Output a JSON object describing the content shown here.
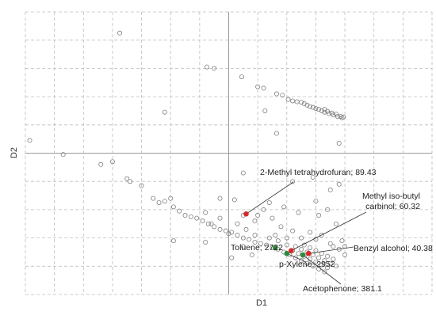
{
  "chart_data": {
    "type": "scatter",
    "xlabel": "D1",
    "ylabel": "D2",
    "xlim": [
      -7,
      7
    ],
    "ylim": [
      -5,
      5
    ],
    "grid": true,
    "background_color": "#808080",
    "highlight_color_red": "#d62828",
    "highlight_color_green": "#2e8b3e",
    "background_points": [
      [
        -3.75,
        4.25
      ],
      [
        -0.75,
        3.05
      ],
      [
        -0.5,
        3.0
      ],
      [
        0.45,
        2.7
      ],
      [
        1.0,
        2.35
      ],
      [
        1.2,
        2.3
      ],
      [
        1.65,
        2.1
      ],
      [
        1.85,
        2.05
      ],
      [
        2.05,
        1.9
      ],
      [
        2.2,
        1.85
      ],
      [
        2.35,
        1.82
      ],
      [
        2.5,
        1.8
      ],
      [
        2.6,
        1.75
      ],
      [
        2.7,
        1.7
      ],
      [
        2.8,
        1.65
      ],
      [
        2.9,
        1.62
      ],
      [
        3.0,
        1.58
      ],
      [
        3.1,
        1.55
      ],
      [
        3.2,
        1.5
      ],
      [
        3.3,
        1.45
      ],
      [
        3.45,
        1.4
      ],
      [
        3.6,
        1.35
      ],
      [
        3.75,
        1.3
      ],
      [
        3.9,
        1.25
      ],
      [
        3.3,
        1.55
      ],
      [
        3.4,
        1.48
      ],
      [
        3.55,
        1.42
      ],
      [
        3.7,
        1.38
      ],
      [
        3.85,
        1.3
      ],
      [
        3.95,
        1.28
      ],
      [
        -2.2,
        1.45
      ],
      [
        1.25,
        1.5
      ],
      [
        1.65,
        0.7
      ],
      [
        3.8,
        0.35
      ],
      [
        -6.85,
        0.45
      ],
      [
        -5.7,
        -0.05
      ],
      [
        -4.4,
        -0.4
      ],
      [
        -4.0,
        -0.3
      ],
      [
        -3.5,
        -0.9
      ],
      [
        -3.4,
        -1.0
      ],
      [
        -3.0,
        -1.15
      ],
      [
        -2.6,
        -1.6
      ],
      [
        -2.4,
        -1.75
      ],
      [
        -2.2,
        -1.7
      ],
      [
        -2.0,
        -1.6
      ],
      [
        -1.9,
        -1.9
      ],
      [
        -1.7,
        -2.05
      ],
      [
        -1.5,
        -2.2
      ],
      [
        -1.3,
        -2.25
      ],
      [
        -1.1,
        -2.3
      ],
      [
        -0.9,
        -2.4
      ],
      [
        -0.7,
        -2.5
      ],
      [
        -0.5,
        -2.6
      ],
      [
        -0.3,
        -2.7
      ],
      [
        -0.1,
        -2.75
      ],
      [
        0.1,
        -2.8
      ],
      [
        0.3,
        -2.9
      ],
      [
        0.5,
        -3.0
      ],
      [
        0.7,
        -3.05
      ],
      [
        0.9,
        -3.15
      ],
      [
        1.1,
        -3.2
      ],
      [
        1.3,
        -3.25
      ],
      [
        1.5,
        -3.35
      ],
      [
        1.7,
        -3.4
      ],
      [
        1.9,
        -3.5
      ],
      [
        2.1,
        -3.6
      ],
      [
        2.3,
        -3.7
      ],
      [
        2.5,
        -3.8
      ],
      [
        2.7,
        -3.9
      ],
      [
        2.9,
        -4.0
      ],
      [
        3.1,
        -4.1
      ],
      [
        3.3,
        -4.2
      ],
      [
        2.2,
        -3.45
      ],
      [
        2.4,
        -3.55
      ],
      [
        2.6,
        -3.65
      ],
      [
        2.8,
        -3.75
      ],
      [
        3.0,
        -3.85
      ],
      [
        3.2,
        -3.95
      ],
      [
        3.4,
        -4.05
      ],
      [
        2.3,
        -3.3
      ],
      [
        2.5,
        -3.4
      ],
      [
        2.7,
        -3.5
      ],
      [
        2.9,
        -3.6
      ],
      [
        3.1,
        -3.7
      ],
      [
        3.3,
        -3.8
      ],
      [
        3.5,
        -3.9
      ],
      [
        3.7,
        -4.0
      ],
      [
        2.0,
        -3.25
      ],
      [
        2.6,
        -3.25
      ],
      [
        2.8,
        -3.35
      ],
      [
        3.0,
        -3.45
      ],
      [
        3.2,
        -3.55
      ],
      [
        3.4,
        -3.65
      ],
      [
        3.6,
        -3.75
      ],
      [
        3.2,
        -2.9
      ],
      [
        3.5,
        -3.2
      ],
      [
        3.8,
        -3.4
      ],
      [
        4.0,
        -3.6
      ],
      [
        3.9,
        -3.1
      ],
      [
        3.7,
        -2.5
      ],
      [
        3.1,
        -2.2
      ],
      [
        2.8,
        -2.8
      ],
      [
        2.5,
        -3.0
      ],
      [
        2.2,
        -2.75
      ],
      [
        1.8,
        -2.6
      ],
      [
        1.5,
        -2.3
      ],
      [
        1.2,
        -2.0
      ],
      [
        0.9,
        -2.4
      ],
      [
        0.6,
        -2.7
      ],
      [
        0.3,
        -2.5
      ],
      [
        0.0,
        -2.85
      ],
      [
        -0.3,
        -2.3
      ],
      [
        -0.6,
        -2.5
      ],
      [
        -0.8,
        -2.1
      ],
      [
        0.2,
        -1.65
      ],
      [
        0.5,
        -2.2
      ],
      [
        1.0,
        -2.2
      ],
      [
        1.4,
        -1.75
      ],
      [
        1.9,
        -1.9
      ],
      [
        2.4,
        -2.1
      ],
      [
        3.0,
        -1.7
      ],
      [
        3.4,
        -2.0
      ],
      [
        3.8,
        -1.1
      ],
      [
        3.5,
        -1.3
      ],
      [
        2.2,
        -1.0
      ],
      [
        2.9,
        -0.85
      ],
      [
        0.5,
        -0.7
      ],
      [
        -0.3,
        -1.6
      ],
      [
        -0.8,
        -3.15
      ],
      [
        -1.9,
        -3.1
      ],
      [
        0.1,
        -3.7
      ],
      [
        0.5,
        -3.3
      ],
      [
        0.8,
        -3.6
      ],
      [
        1.4,
        -3.0
      ],
      [
        1.7,
        -3.1
      ],
      [
        3.6,
        -3.3
      ],
      [
        4.0,
        -3.3
      ],
      [
        3.0,
        -3.05
      ],
      [
        2.0,
        -3.0
      ],
      [
        1.6,
        -2.9
      ],
      [
        0.9,
        -2.9
      ]
    ],
    "highlighted_points": [
      {
        "label": "2-Methyl tetrahydrofuran; 89.43",
        "x": 0.6,
        "y": -2.15,
        "color": "red"
      },
      {
        "label": "Methyl iso-butyl carbinol; 60.32",
        "x": 2.15,
        "y": -3.45,
        "color": "red"
      },
      {
        "label": "Benzyl alcohol; 40.38",
        "x": 2.75,
        "y": -3.55,
        "color": "red"
      },
      {
        "label": "Toluene; 2722",
        "x": 1.6,
        "y": -3.35,
        "color": "green"
      },
      {
        "label": "p-Xylene; 2952",
        "x": 2.0,
        "y": -3.55,
        "color": "green"
      },
      {
        "label": "Acetophenone; 381.1",
        "x": 2.55,
        "y": -3.6,
        "color": "green"
      }
    ]
  }
}
